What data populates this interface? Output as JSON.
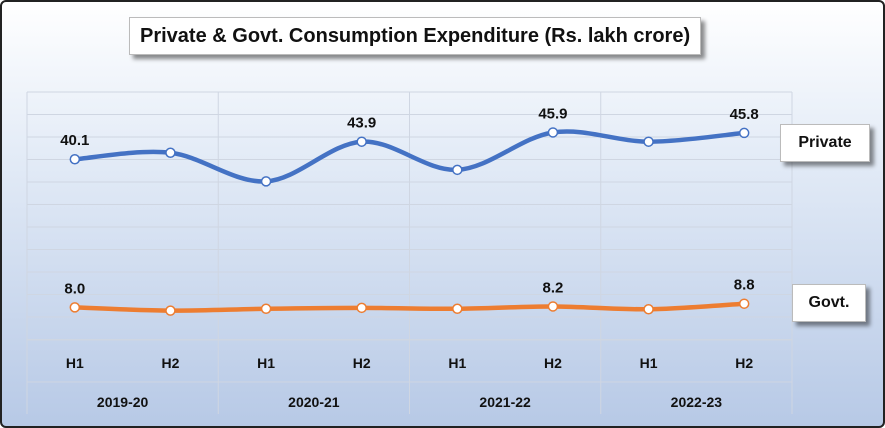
{
  "chart_data": {
    "type": "line",
    "title": "Private & Govt. Consumption Expenditure (Rs. lakh crore)",
    "categories": [
      "H1",
      "H2",
      "H1",
      "H2",
      "H1",
      "H2",
      "H1",
      "H2"
    ],
    "groups": [
      "2019-20",
      "2020-21",
      "2021-22",
      "2022-23"
    ],
    "series": [
      {
        "name": "Private",
        "color": "#4472C4",
        "values": [
          40.1,
          41.5,
          35.3,
          43.9,
          37.8,
          45.9,
          43.9,
          45.8
        ],
        "labels": [
          "40.1",
          "",
          "",
          "43.9",
          "",
          "45.9",
          "",
          "45.8"
        ]
      },
      {
        "name": "Govt.",
        "color": "#ED7D31",
        "values": [
          8.0,
          7.3,
          7.7,
          7.9,
          7.7,
          8.2,
          7.6,
          8.8
        ],
        "labels": [
          "8.0",
          "",
          "",
          "",
          "",
          "8.2",
          "",
          "8.8"
        ]
      }
    ],
    "ylim": [
      0,
      50
    ],
    "grid": true,
    "legend": [
      "Private",
      "Govt."
    ]
  }
}
